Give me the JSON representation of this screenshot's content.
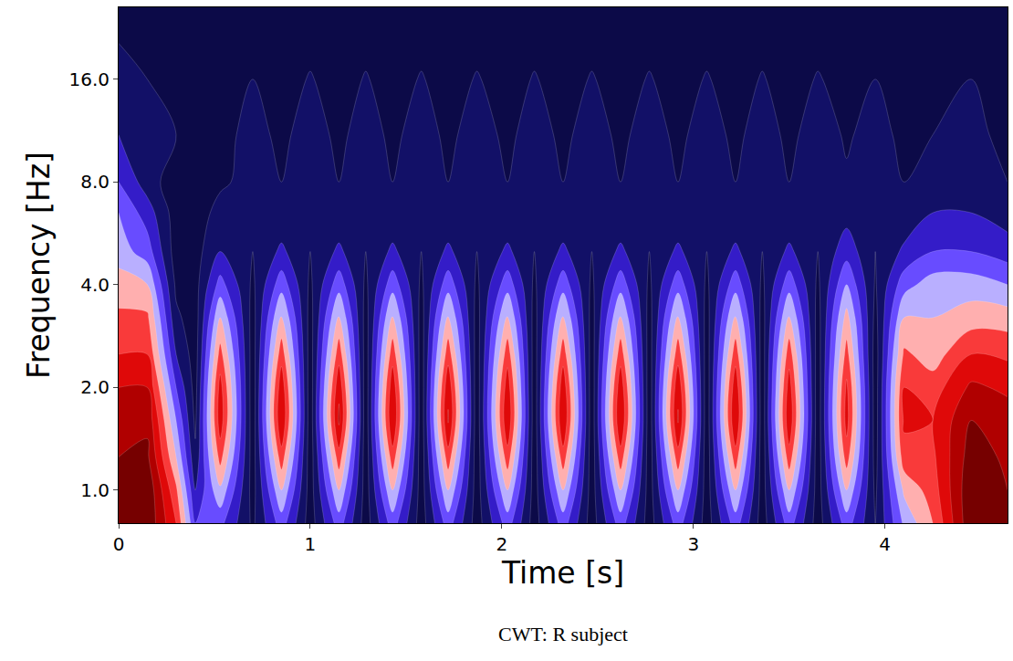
{
  "chart_data": {
    "type": "contour",
    "title": "CWT: R subject",
    "x_label": "Time [s]",
    "y_label": "Frequency [Hz]",
    "log": "y",
    "grid": false,
    "xlim": [
      0,
      4.64
    ],
    "ylim": [
      0.8,
      26
    ],
    "xticks": [
      0,
      1,
      2,
      3,
      4
    ],
    "yticks": [
      {
        "value": 1,
        "label": "1.0"
      },
      {
        "value": 2,
        "label": "2.0"
      },
      {
        "value": 4,
        "label": "4.0"
      },
      {
        "value": 8,
        "label": "8.0"
      },
      {
        "value": 16,
        "label": "16.0"
      }
    ],
    "zlim": [
      0,
      1
    ],
    "x": [
      0,
      0.15,
      0.3,
      0.4,
      0.53,
      0.7,
      0.85,
      1.0,
      1.15,
      1.29,
      1.43,
      1.58,
      1.72,
      1.87,
      2.03,
      2.17,
      2.32,
      2.47,
      2.62,
      2.77,
      2.92,
      3.07,
      3.22,
      3.36,
      3.5,
      3.65,
      3.8,
      3.95,
      4.1,
      4.25,
      4.45,
      4.64
    ],
    "y": [
      0.8,
      1.0,
      1.25,
      1.6,
      2.0,
      2.5,
      3.2,
      4.0,
      5.0,
      6.5,
      8.0,
      11.0,
      16.0,
      26.0
    ],
    "z": [
      [
        0.95,
        0.98,
        0.7,
        0.3,
        0.33,
        0.08,
        0.35,
        0.05,
        0.35,
        0.05,
        0.35,
        0.05,
        0.35,
        0.05,
        0.35,
        0.05,
        0.35,
        0.05,
        0.35,
        0.05,
        0.35,
        0.05,
        0.35,
        0.05,
        0.35,
        0.05,
        0.35,
        0.1,
        0.42,
        0.6,
        0.98,
        0.9
      ],
      [
        0.95,
        0.98,
        0.62,
        0.2,
        0.48,
        0.06,
        0.5,
        0.05,
        0.5,
        0.05,
        0.5,
        0.05,
        0.5,
        0.05,
        0.5,
        0.05,
        0.5,
        0.05,
        0.5,
        0.05,
        0.5,
        0.05,
        0.5,
        0.05,
        0.5,
        0.05,
        0.5,
        0.08,
        0.52,
        0.65,
        0.98,
        0.9
      ],
      [
        0.9,
        0.92,
        0.5,
        0.12,
        0.64,
        0.05,
        0.66,
        0.04,
        0.66,
        0.04,
        0.66,
        0.04,
        0.66,
        0.04,
        0.66,
        0.04,
        0.66,
        0.04,
        0.66,
        0.04,
        0.66,
        0.04,
        0.66,
        0.04,
        0.66,
        0.04,
        0.65,
        0.06,
        0.66,
        0.68,
        0.95,
        0.88
      ],
      [
        0.88,
        0.88,
        0.4,
        0.08,
        0.76,
        0.04,
        0.8,
        0.04,
        0.82,
        0.04,
        0.8,
        0.04,
        0.81,
        0.04,
        0.79,
        0.04,
        0.8,
        0.04,
        0.8,
        0.04,
        0.81,
        0.04,
        0.8,
        0.04,
        0.78,
        0.04,
        0.74,
        0.05,
        0.72,
        0.7,
        0.9,
        0.85
      ],
      [
        0.8,
        0.8,
        0.3,
        0.06,
        0.74,
        0.04,
        0.77,
        0.04,
        0.78,
        0.04,
        0.77,
        0.04,
        0.78,
        0.04,
        0.76,
        0.04,
        0.77,
        0.04,
        0.77,
        0.04,
        0.78,
        0.04,
        0.77,
        0.04,
        0.75,
        0.04,
        0.72,
        0.05,
        0.7,
        0.65,
        0.82,
        0.78
      ],
      [
        0.7,
        0.7,
        0.2,
        0.05,
        0.64,
        0.05,
        0.66,
        0.05,
        0.66,
        0.05,
        0.66,
        0.05,
        0.66,
        0.05,
        0.66,
        0.05,
        0.66,
        0.05,
        0.66,
        0.05,
        0.66,
        0.05,
        0.66,
        0.05,
        0.66,
        0.05,
        0.64,
        0.05,
        0.62,
        0.55,
        0.7,
        0.68
      ],
      [
        0.62,
        0.62,
        0.12,
        0.05,
        0.5,
        0.06,
        0.52,
        0.06,
        0.52,
        0.06,
        0.52,
        0.06,
        0.52,
        0.06,
        0.52,
        0.06,
        0.52,
        0.06,
        0.52,
        0.06,
        0.52,
        0.06,
        0.52,
        0.06,
        0.52,
        0.06,
        0.54,
        0.07,
        0.5,
        0.5,
        0.55,
        0.55
      ],
      [
        0.55,
        0.5,
        0.08,
        0.06,
        0.34,
        0.08,
        0.36,
        0.08,
        0.36,
        0.08,
        0.36,
        0.08,
        0.36,
        0.08,
        0.36,
        0.08,
        0.36,
        0.08,
        0.36,
        0.08,
        0.36,
        0.08,
        0.36,
        0.08,
        0.36,
        0.08,
        0.4,
        0.09,
        0.36,
        0.45,
        0.45,
        0.4
      ],
      [
        0.45,
        0.35,
        0.05,
        0.06,
        0.2,
        0.1,
        0.22,
        0.1,
        0.22,
        0.1,
        0.22,
        0.1,
        0.22,
        0.1,
        0.22,
        0.1,
        0.22,
        0.1,
        0.22,
        0.1,
        0.22,
        0.1,
        0.22,
        0.1,
        0.22,
        0.1,
        0.26,
        0.1,
        0.22,
        0.3,
        0.3,
        0.25
      ],
      [
        0.4,
        0.25,
        0.05,
        0.07,
        0.12,
        0.13,
        0.13,
        0.14,
        0.13,
        0.14,
        0.13,
        0.14,
        0.13,
        0.14,
        0.13,
        0.14,
        0.13,
        0.14,
        0.13,
        0.14,
        0.13,
        0.14,
        0.13,
        0.14,
        0.13,
        0.14,
        0.16,
        0.13,
        0.13,
        0.2,
        0.2,
        0.15
      ],
      [
        0.3,
        0.15,
        0.04,
        0.06,
        0.09,
        0.12,
        0.1,
        0.13,
        0.1,
        0.13,
        0.1,
        0.13,
        0.1,
        0.13,
        0.1,
        0.13,
        0.1,
        0.13,
        0.1,
        0.13,
        0.1,
        0.13,
        0.1,
        0.13,
        0.1,
        0.13,
        0.11,
        0.12,
        0.1,
        0.12,
        0.12,
        0.1
      ],
      [
        0.2,
        0.12,
        0.1,
        0.05,
        0.07,
        0.13,
        0.08,
        0.14,
        0.08,
        0.14,
        0.08,
        0.14,
        0.08,
        0.14,
        0.08,
        0.14,
        0.08,
        0.14,
        0.08,
        0.14,
        0.08,
        0.14,
        0.08,
        0.14,
        0.08,
        0.14,
        0.09,
        0.13,
        0.08,
        0.1,
        0.12,
        0.08
      ],
      [
        0.15,
        0.1,
        0.05,
        0.03,
        0.04,
        0.1,
        0.04,
        0.11,
        0.04,
        0.11,
        0.04,
        0.11,
        0.04,
        0.11,
        0.04,
        0.11,
        0.04,
        0.11,
        0.04,
        0.11,
        0.04,
        0.11,
        0.04,
        0.11,
        0.04,
        0.11,
        0.05,
        0.1,
        0.04,
        0.05,
        0.1,
        0.05
      ],
      [
        0.05,
        0.02,
        0,
        0,
        0,
        0.02,
        0,
        0.02,
        0,
        0.02,
        0,
        0.02,
        0,
        0.02,
        0,
        0.02,
        0,
        0.02,
        0,
        0.02,
        0,
        0.02,
        0,
        0.02,
        0,
        0.02,
        0,
        0.02,
        0,
        0,
        0.02,
        0
      ]
    ]
  }
}
